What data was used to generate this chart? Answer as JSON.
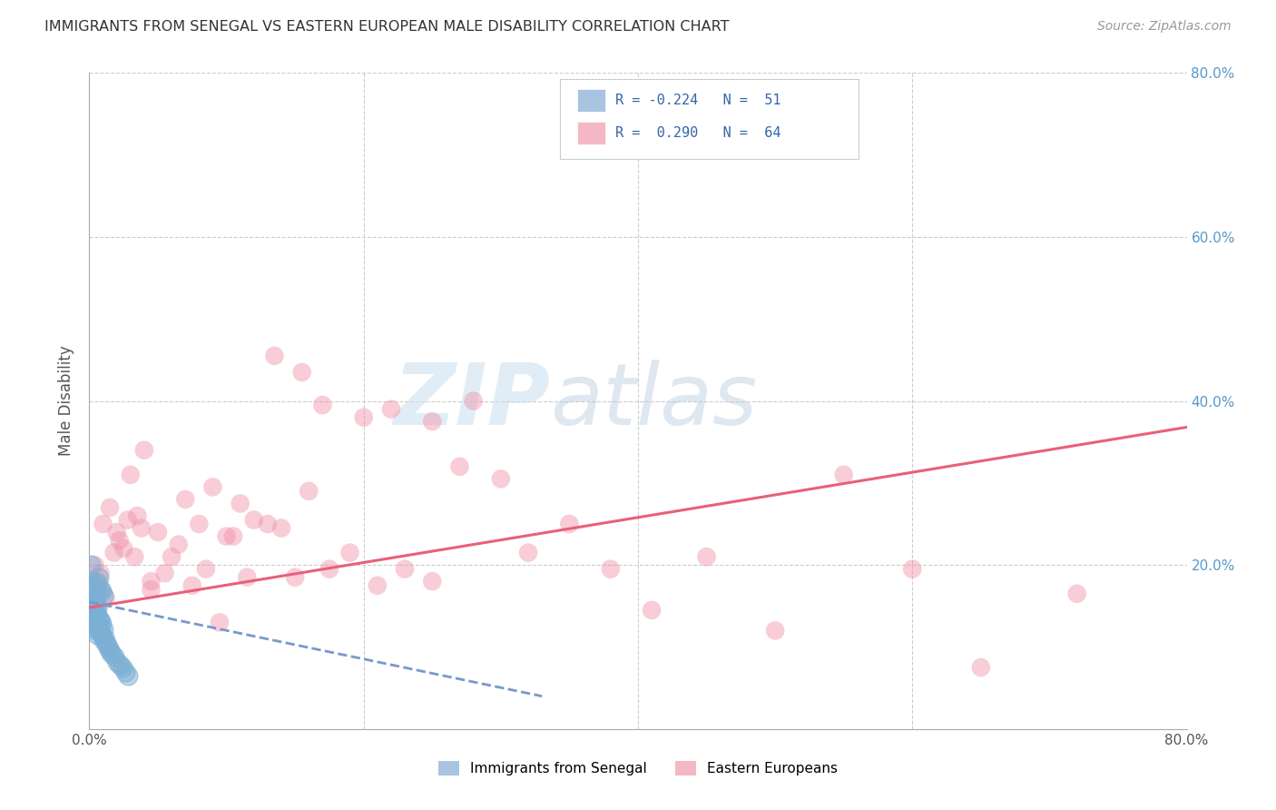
{
  "title": "IMMIGRANTS FROM SENEGAL VS EASTERN EUROPEAN MALE DISABILITY CORRELATION CHART",
  "source": "Source: ZipAtlas.com",
  "ylabel": "Male Disability",
  "xlim": [
    0.0,
    0.8
  ],
  "ylim": [
    0.0,
    0.8
  ],
  "xticks": [
    0.0,
    0.2,
    0.4,
    0.6,
    0.8
  ],
  "yticks": [
    0.2,
    0.4,
    0.6,
    0.8
  ],
  "color_blue": "#a8c4e0",
  "color_pink": "#f4b8c4",
  "line_color_blue": "#7799cc",
  "line_color_pink": "#e8607a",
  "scatter_color_blue": "#7bafd4",
  "scatter_color_pink": "#f090a8",
  "bg_color": "#ffffff",
  "grid_color": "#cccccc",
  "title_color": "#333333",
  "right_axis_color": "#5599cc",
  "watermark_zip": "ZIP",
  "watermark_atlas": "atlas",
  "senegal_x": [
    0.001,
    0.001,
    0.001,
    0.002,
    0.002,
    0.002,
    0.002,
    0.003,
    0.003,
    0.003,
    0.003,
    0.004,
    0.004,
    0.004,
    0.005,
    0.005,
    0.005,
    0.006,
    0.006,
    0.006,
    0.007,
    0.007,
    0.008,
    0.008,
    0.009,
    0.009,
    0.01,
    0.01,
    0.011,
    0.012,
    0.013,
    0.014,
    0.015,
    0.016,
    0.018,
    0.02,
    0.022,
    0.024,
    0.026,
    0.028,
    0.001,
    0.002,
    0.003,
    0.004,
    0.005,
    0.006,
    0.007,
    0.008,
    0.009,
    0.01,
    0.001
  ],
  "senegal_y": [
    0.15,
    0.16,
    0.14,
    0.155,
    0.145,
    0.165,
    0.13,
    0.148,
    0.158,
    0.135,
    0.125,
    0.152,
    0.14,
    0.128,
    0.145,
    0.155,
    0.12,
    0.138,
    0.148,
    0.115,
    0.135,
    0.125,
    0.132,
    0.118,
    0.128,
    0.115,
    0.122,
    0.108,
    0.112,
    0.105,
    0.102,
    0.098,
    0.095,
    0.092,
    0.088,
    0.082,
    0.078,
    0.075,
    0.07,
    0.065,
    0.175,
    0.18,
    0.172,
    0.168,
    0.165,
    0.178,
    0.185,
    0.17,
    0.168,
    0.162,
    0.2
  ],
  "eastern_x": [
    0.002,
    0.004,
    0.006,
    0.01,
    0.015,
    0.02,
    0.025,
    0.03,
    0.035,
    0.04,
    0.045,
    0.05,
    0.06,
    0.07,
    0.08,
    0.09,
    0.1,
    0.11,
    0.12,
    0.13,
    0.14,
    0.15,
    0.16,
    0.175,
    0.19,
    0.21,
    0.23,
    0.25,
    0.27,
    0.3,
    0.32,
    0.35,
    0.38,
    0.41,
    0.45,
    0.5,
    0.55,
    0.6,
    0.65,
    0.72,
    0.003,
    0.005,
    0.008,
    0.012,
    0.018,
    0.022,
    0.028,
    0.033,
    0.038,
    0.045,
    0.055,
    0.065,
    0.075,
    0.085,
    0.095,
    0.105,
    0.115,
    0.135,
    0.155,
    0.17,
    0.2,
    0.22,
    0.25,
    0.28
  ],
  "eastern_y": [
    0.16,
    0.2,
    0.18,
    0.25,
    0.27,
    0.24,
    0.22,
    0.31,
    0.26,
    0.34,
    0.18,
    0.24,
    0.21,
    0.28,
    0.25,
    0.295,
    0.235,
    0.275,
    0.255,
    0.25,
    0.245,
    0.185,
    0.29,
    0.195,
    0.215,
    0.175,
    0.195,
    0.18,
    0.32,
    0.305,
    0.215,
    0.25,
    0.195,
    0.145,
    0.21,
    0.12,
    0.31,
    0.195,
    0.075,
    0.165,
    0.165,
    0.175,
    0.19,
    0.16,
    0.215,
    0.23,
    0.255,
    0.21,
    0.245,
    0.17,
    0.19,
    0.225,
    0.175,
    0.195,
    0.13,
    0.235,
    0.185,
    0.455,
    0.435,
    0.395,
    0.38,
    0.39,
    0.375,
    0.4
  ],
  "pink_line_x": [
    0.0,
    0.8
  ],
  "pink_line_y": [
    0.148,
    0.368
  ],
  "blue_line_x": [
    0.0,
    0.33
  ],
  "blue_line_y": [
    0.155,
    0.04
  ]
}
